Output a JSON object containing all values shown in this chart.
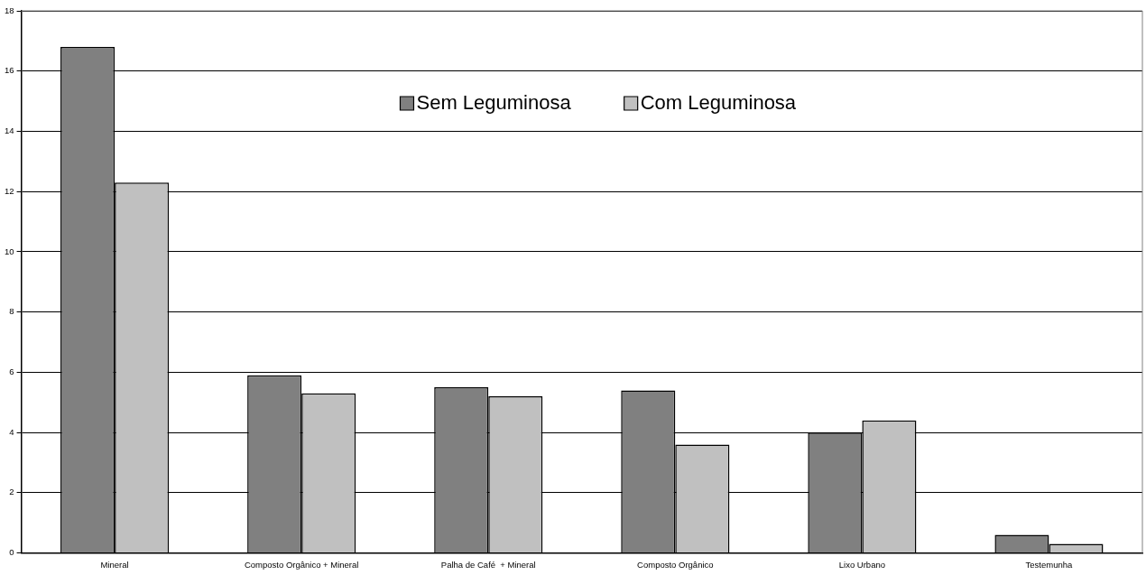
{
  "chart_data": {
    "type": "bar",
    "categories": [
      "Mineral",
      "Composto Orgânico + Mineral",
      "Palha de Café  + Mineral",
      "Composto Orgânico",
      "Lixo Urbano",
      "Testemunha"
    ],
    "series": [
      {
        "name": "Sem Leguminosa",
        "color": "#808080",
        "values": [
          16.8,
          5.9,
          5.5,
          5.4,
          4.0,
          0.6
        ]
      },
      {
        "name": "Com Leguminosa",
        "color": "#c0c0c0",
        "values": [
          12.3,
          5.3,
          5.2,
          3.6,
          4.4,
          0.3
        ]
      }
    ],
    "ylim": [
      0,
      18
    ],
    "yticks": [
      0,
      2,
      4,
      6,
      8,
      10,
      12,
      14,
      16,
      18
    ],
    "grid": "y",
    "legend": "top"
  }
}
